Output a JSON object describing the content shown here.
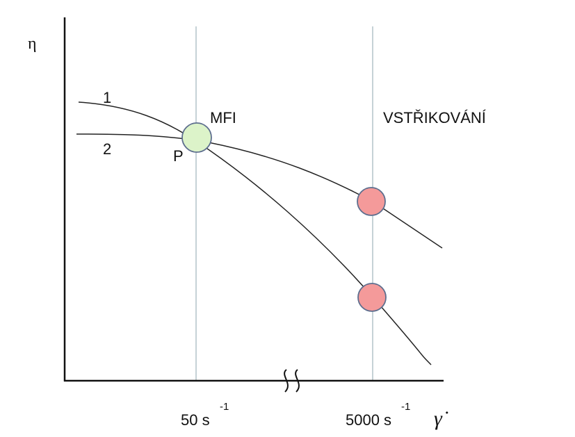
{
  "y_axis_label": "η",
  "x_axis_label": "γ̇",
  "curve_labels": [
    "1",
    "2"
  ],
  "point_label": "P",
  "regions": [
    {
      "label": "MFI",
      "rate": "50 s",
      "exponent": "-1"
    },
    {
      "label": "VSTŘIKOVÁNÍ",
      "rate": "5000 s",
      "exponent": "-1"
    }
  ]
}
